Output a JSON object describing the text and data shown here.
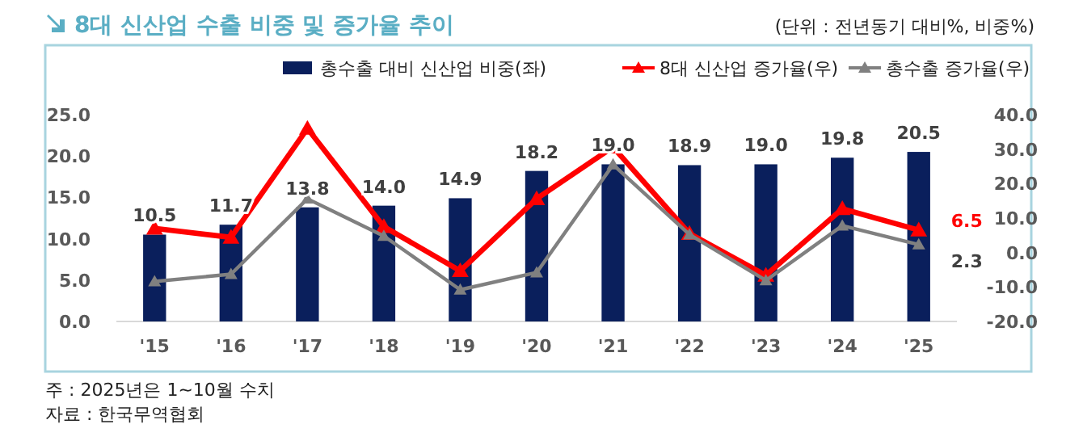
{
  "chart_data": {
    "type": "bar",
    "title": "8대 신산업 수출 비중 및 증가율 추이",
    "subtitle": "(단위 : 전년동기 대비%, 비중%)",
    "categories": [
      "'15",
      "'16",
      "'17",
      "'18",
      "'19",
      "'20",
      "'21",
      "'22",
      "'23",
      "'24",
      "'25"
    ],
    "series": [
      {
        "name": "총수출 대비 신산업 비중(좌)",
        "color": "#0a1f5c",
        "values": [
          10.5,
          11.7,
          13.8,
          14.0,
          14.9,
          18.2,
          19.0,
          18.9,
          19.0,
          19.8,
          20.5
        ],
        "value_labels": [
          "10.5",
          "11.7",
          "13.8",
          "14.0",
          "14.9",
          "18.2",
          "19.0",
          "18.9",
          "19.0",
          "19.8",
          "20.5"
        ]
      },
      {
        "name": "8대 신산업 증가율(우)",
        "type": "line",
        "axis": "y2",
        "color": "#ff0000",
        "values": [
          7.0,
          4.4,
          36.0,
          7.5,
          -5.3,
          15.6,
          30.6,
          5.5,
          -6.6,
          12.7,
          6.5
        ],
        "value_labels": [
          null,
          null,
          null,
          null,
          null,
          null,
          null,
          null,
          null,
          null,
          "6.5"
        ]
      },
      {
        "name": "총수출 증가율(우)",
        "type": "line",
        "axis": "y2",
        "color": "#808080",
        "values": [
          -8.4,
          -6.3,
          15.6,
          4.8,
          -10.8,
          -5.8,
          25.5,
          5.2,
          -8.1,
          7.8,
          2.3
        ],
        "value_labels": [
          null,
          null,
          null,
          null,
          null,
          null,
          null,
          null,
          null,
          null,
          "2.3"
        ]
      }
    ],
    "ylim": [
      0,
      25
    ],
    "yticks": [
      {
        "value": 0,
        "label": "0.0"
      },
      {
        "value": 5,
        "label": "5.0"
      },
      {
        "value": 10,
        "label": "10.0"
      },
      {
        "value": 15,
        "label": "15.0"
      },
      {
        "value": 20,
        "label": "20.0"
      },
      {
        "value": 25,
        "label": "25.0"
      }
    ],
    "y2lim": [
      -20,
      40
    ],
    "y2ticks": [
      {
        "value": -20,
        "label": "-20.0"
      },
      {
        "value": -10,
        "label": "-10.0"
      },
      {
        "value": 0,
        "label": "0.0"
      },
      {
        "value": 10,
        "label": "10.0"
      },
      {
        "value": 20,
        "label": "20.0"
      },
      {
        "value": 30,
        "label": "30.0"
      },
      {
        "value": 40,
        "label": "40.0"
      }
    ],
    "marker": "triangle",
    "line_style": "solid",
    "legend": "top",
    "grid": false,
    "annotations": [
      "주 : 2025년은 1~10월 수치",
      "자료 : 한국무역협회"
    ]
  }
}
